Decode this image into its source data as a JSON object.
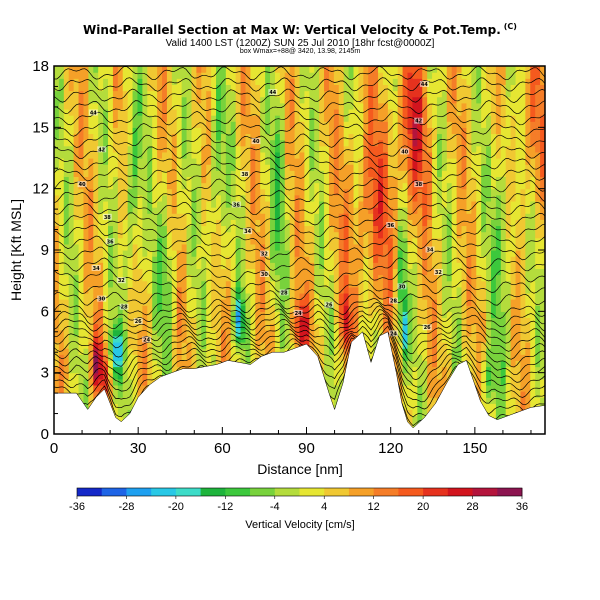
{
  "header": {
    "title": "Wind-Parallel Section at Max W: Vertical Velocity & Pot.Temp.",
    "title_mark": "(C)",
    "subtitle": "Valid 1400 LST (1200Z) SUN 25 Jul 2010 [18hr fcst@0000Z]",
    "small_line": "box Wmax=+88@ 3420, 13.98, 2145m"
  },
  "chart_data": {
    "type": "heatmap",
    "xlabel": "Distance [nm]",
    "ylabel": "Height [Kft MSL]",
    "xlim": [
      0,
      175
    ],
    "ylim": [
      0,
      18
    ],
    "x_ticks": [
      "0",
      "30",
      "60",
      "90",
      "120",
      "150"
    ],
    "x_tick_values": [
      0,
      30,
      60,
      90,
      120,
      150
    ],
    "y_ticks": [
      "0",
      "3",
      "6",
      "9",
      "12",
      "15",
      "18"
    ],
    "y_tick_values": [
      0,
      3,
      6,
      9,
      12,
      15,
      18
    ],
    "colorbar": {
      "label": "Vertical Velocity [cm/s]",
      "tick_labels": [
        "-36",
        "-28",
        "-20",
        "-12",
        "-4",
        "4",
        "12",
        "20",
        "28",
        "36"
      ],
      "levels": [
        -36,
        -32,
        -28,
        -24,
        -20,
        -16,
        -12,
        -8,
        -4,
        0,
        4,
        8,
        12,
        16,
        20,
        24,
        28,
        32,
        36
      ],
      "colors": [
        "#1428c8",
        "#1e64e6",
        "#1ea0f0",
        "#28c8e6",
        "#3cdcc8",
        "#1eb43c",
        "#3cc83c",
        "#78d23c",
        "#b4dc3c",
        "#e6e632",
        "#f0c832",
        "#f5a028",
        "#f57d28",
        "#f55a1e",
        "#e6321e",
        "#d2141e",
        "#b4143c",
        "#8c1450"
      ]
    },
    "terrain_nm_kft": [
      [
        0,
        2.0
      ],
      [
        8,
        2.0
      ],
      [
        10,
        1.6
      ],
      [
        12,
        1.2
      ],
      [
        15,
        1.8
      ],
      [
        18,
        2.2
      ],
      [
        20,
        1.5
      ],
      [
        22,
        0.8
      ],
      [
        24,
        0.6
      ],
      [
        27,
        1.0
      ],
      [
        30,
        1.8
      ],
      [
        34,
        2.4
      ],
      [
        38,
        2.8
      ],
      [
        42,
        3.0
      ],
      [
        46,
        3.2
      ],
      [
        50,
        3.2
      ],
      [
        54,
        3.3
      ],
      [
        58,
        3.4
      ],
      [
        62,
        3.6
      ],
      [
        66,
        3.5
      ],
      [
        70,
        3.4
      ],
      [
        74,
        3.8
      ],
      [
        78,
        4.0
      ],
      [
        82,
        4.0
      ],
      [
        86,
        4.2
      ],
      [
        90,
        4.4
      ],
      [
        94,
        3.8
      ],
      [
        98,
        2.0
      ],
      [
        100,
        1.2
      ],
      [
        103,
        2.5
      ],
      [
        106,
        4.5
      ],
      [
        110,
        5.0
      ],
      [
        113,
        3.5
      ],
      [
        116,
        4.8
      ],
      [
        119,
        5.0
      ],
      [
        122,
        3.0
      ],
      [
        124,
        1.5
      ],
      [
        126,
        0.6
      ],
      [
        128,
        0.3
      ],
      [
        132,
        0.8
      ],
      [
        136,
        1.5
      ],
      [
        140,
        2.5
      ],
      [
        144,
        3.4
      ],
      [
        147,
        3.6
      ],
      [
        149,
        2.8
      ],
      [
        152,
        1.6
      ],
      [
        155,
        0.9
      ],
      [
        158,
        0.7
      ],
      [
        162,
        0.9
      ],
      [
        166,
        1.1
      ],
      [
        170,
        1.3
      ],
      [
        175,
        1.4
      ]
    ],
    "theta_contour_labels": [
      {
        "x": 14,
        "y": 15.7,
        "text": "44"
      },
      {
        "x": 17,
        "y": 13.9,
        "text": "42"
      },
      {
        "x": 10,
        "y": 12.2,
        "text": "40"
      },
      {
        "x": 19,
        "y": 10.6,
        "text": "38"
      },
      {
        "x": 20,
        "y": 9.4,
        "text": "36"
      },
      {
        "x": 15,
        "y": 8.1,
        "text": "34"
      },
      {
        "x": 24,
        "y": 7.5,
        "text": "32"
      },
      {
        "x": 17,
        "y": 6.6,
        "text": "30"
      },
      {
        "x": 25,
        "y": 6.2,
        "text": "28"
      },
      {
        "x": 30,
        "y": 5.5,
        "text": "26"
      },
      {
        "x": 33,
        "y": 4.6,
        "text": "24"
      },
      {
        "x": 78,
        "y": 16.7,
        "text": "44"
      },
      {
        "x": 72,
        "y": 14.3,
        "text": "40"
      },
      {
        "x": 68,
        "y": 12.7,
        "text": "38"
      },
      {
        "x": 65,
        "y": 11.2,
        "text": "36"
      },
      {
        "x": 69,
        "y": 9.9,
        "text": "34"
      },
      {
        "x": 75,
        "y": 8.8,
        "text": "32"
      },
      {
        "x": 75,
        "y": 7.8,
        "text": "30"
      },
      {
        "x": 82,
        "y": 6.9,
        "text": "28"
      },
      {
        "x": 98,
        "y": 6.3,
        "text": "26"
      },
      {
        "x": 87,
        "y": 5.9,
        "text": "24"
      },
      {
        "x": 132,
        "y": 17.1,
        "text": "44"
      },
      {
        "x": 130,
        "y": 15.3,
        "text": "42"
      },
      {
        "x": 125,
        "y": 13.8,
        "text": "40"
      },
      {
        "x": 130,
        "y": 12.2,
        "text": "38"
      },
      {
        "x": 120,
        "y": 10.2,
        "text": "36"
      },
      {
        "x": 134,
        "y": 9.0,
        "text": "34"
      },
      {
        "x": 137,
        "y": 7.9,
        "text": "32"
      },
      {
        "x": 124,
        "y": 7.2,
        "text": "30"
      },
      {
        "x": 121,
        "y": 6.5,
        "text": "28"
      },
      {
        "x": 133,
        "y": 5.2,
        "text": "26"
      },
      {
        "x": 121,
        "y": 4.9,
        "text": "24"
      }
    ]
  }
}
